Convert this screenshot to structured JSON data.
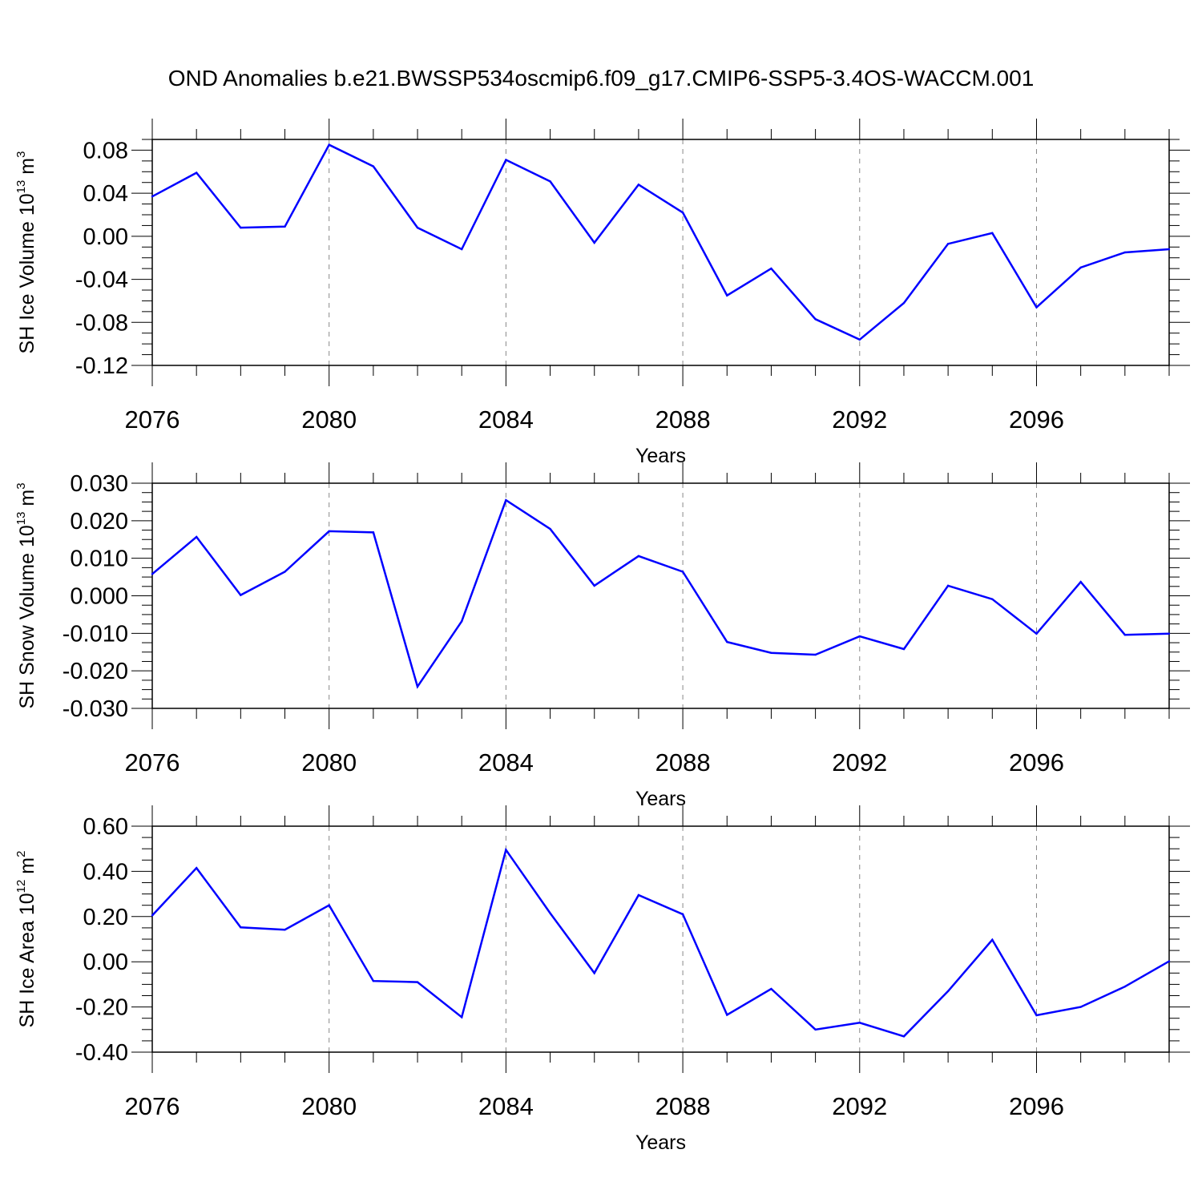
{
  "title": "OND Anomalies b.e21.BWSSP534oscmip6.f09_g17.CMIP6-SSP5-3.4OS-WACCM.001",
  "line_color": "#0000ff",
  "chart_data": [
    {
      "type": "line",
      "name": "ice-volume",
      "ylabel_main": "SH Ice Volume 10",
      "ylabel_exp": "13",
      "ylabel_unit": " m",
      "ylabel_unit_exp": "3",
      "xlabel": "Years",
      "xlim": [
        2076,
        2099
      ],
      "ylim": [
        -0.12,
        0.09
      ],
      "yticks": [
        -0.12,
        -0.08,
        -0.04,
        0.0,
        0.04,
        0.08
      ],
      "ytick_labels": [
        "-0.12",
        "-0.08",
        "-0.04",
        "0.00",
        "0.04",
        "0.08"
      ],
      "xticks": [
        2076,
        2080,
        2084,
        2088,
        2092,
        2096
      ],
      "xtick_labels": [
        "2076",
        "2080",
        "2084",
        "2088",
        "2092",
        "2096"
      ],
      "x": [
        2076,
        2077,
        2078,
        2079,
        2080,
        2081,
        2082,
        2083,
        2084,
        2085,
        2086,
        2087,
        2088,
        2089,
        2090,
        2091,
        2092,
        2093,
        2094,
        2095,
        2096,
        2097,
        2098,
        2099
      ],
      "values": [
        0.037,
        0.059,
        0.008,
        0.009,
        0.085,
        0.065,
        0.008,
        -0.012,
        0.071,
        0.051,
        -0.006,
        0.048,
        0.022,
        -0.055,
        -0.03,
        -0.077,
        -0.096,
        -0.062,
        -0.007,
        0.003,
        -0.066,
        -0.029,
        -0.015,
        -0.012
      ]
    },
    {
      "type": "line",
      "name": "snow-volume",
      "ylabel_main": "SH Snow Volume 10",
      "ylabel_exp": "13",
      "ylabel_unit": " m",
      "ylabel_unit_exp": "3",
      "xlabel": "Years",
      "xlim": [
        2076,
        2099
      ],
      "ylim": [
        -0.03,
        0.03
      ],
      "yticks": [
        -0.03,
        -0.02,
        -0.01,
        0.0,
        0.01,
        0.02,
        0.03
      ],
      "ytick_labels": [
        "-0.030",
        "-0.020",
        "-0.010",
        "0.000",
        "0.010",
        "0.020",
        "0.030"
      ],
      "xticks": [
        2076,
        2080,
        2084,
        2088,
        2092,
        2096
      ],
      "xtick_labels": [
        "2076",
        "2080",
        "2084",
        "2088",
        "2092",
        "2096"
      ],
      "x": [
        2076,
        2077,
        2078,
        2079,
        2080,
        2081,
        2082,
        2083,
        2084,
        2085,
        2086,
        2087,
        2088,
        2089,
        2090,
        2091,
        2092,
        2093,
        2094,
        2095,
        2096,
        2097,
        2098,
        2099
      ],
      "values": [
        0.0058,
        0.0157,
        0.0002,
        0.0064,
        0.0172,
        0.0169,
        -0.0242,
        -0.0068,
        0.0255,
        0.0178,
        0.0027,
        0.0106,
        0.0064,
        -0.0123,
        -0.0152,
        -0.0157,
        -0.0108,
        -0.0142,
        0.0027,
        -0.0009,
        -0.0101,
        0.0037,
        -0.0104,
        -0.0101
      ]
    },
    {
      "type": "line",
      "name": "ice-area",
      "ylabel_main": "SH Ice Area 10",
      "ylabel_exp": "12",
      "ylabel_unit": " m",
      "ylabel_unit_exp": "2",
      "xlabel": "Years",
      "xlim": [
        2076,
        2099
      ],
      "ylim": [
        -0.4,
        0.6
      ],
      "yticks": [
        -0.4,
        -0.2,
        0.0,
        0.2,
        0.4,
        0.6
      ],
      "ytick_labels": [
        "-0.40",
        "-0.20",
        "0.00",
        "0.20",
        "0.40",
        "0.60"
      ],
      "xticks": [
        2076,
        2080,
        2084,
        2088,
        2092,
        2096
      ],
      "xtick_labels": [
        "2076",
        "2080",
        "2084",
        "2088",
        "2092",
        "2096"
      ],
      "x": [
        2076,
        2077,
        2078,
        2079,
        2080,
        2081,
        2082,
        2083,
        2084,
        2085,
        2086,
        2087,
        2088,
        2089,
        2090,
        2091,
        2092,
        2093,
        2094,
        2095,
        2096,
        2097,
        2098,
        2099
      ],
      "values": [
        0.205,
        0.415,
        0.152,
        0.142,
        0.25,
        -0.085,
        -0.09,
        -0.245,
        0.495,
        0.215,
        -0.05,
        0.295,
        0.21,
        -0.235,
        -0.12,
        -0.3,
        -0.27,
        -0.33,
        -0.13,
        0.097,
        -0.237,
        -0.2,
        -0.11,
        0.002
      ]
    }
  ]
}
